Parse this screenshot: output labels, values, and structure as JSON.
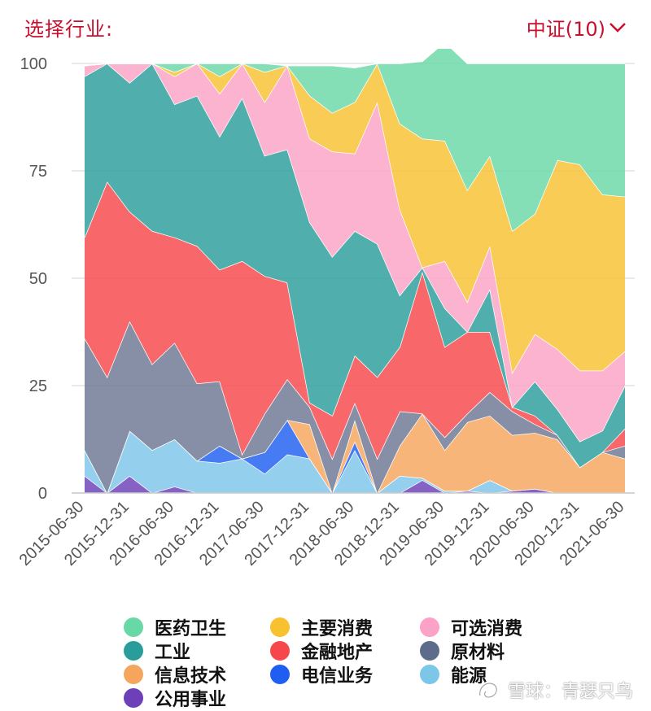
{
  "header": {
    "title": "选择行业:",
    "index_selector": "中证(10)"
  },
  "watermark": {
    "text": "雪球：青瑟只鸟"
  },
  "chart_data": {
    "type": "area",
    "stacked": true,
    "ylim": [
      0,
      100
    ],
    "yticks": [
      0,
      25,
      50,
      75,
      100
    ],
    "x": [
      "2015-06-30",
      "2015-09-30",
      "2015-12-31",
      "2016-03-31",
      "2016-06-30",
      "2016-09-30",
      "2016-12-31",
      "2017-03-31",
      "2017-06-30",
      "2017-09-30",
      "2017-12-31",
      "2018-03-31",
      "2018-06-30",
      "2018-09-30",
      "2018-12-31",
      "2019-03-31",
      "2019-06-30",
      "2019-09-30",
      "2019-12-31",
      "2020-03-31",
      "2020-06-30",
      "2020-09-30",
      "2020-12-31",
      "2021-03-31",
      "2021-06-30"
    ],
    "xtick_labels": [
      "2015-06-30",
      "2015-12-31",
      "2016-06-30",
      "2016-12-31",
      "2017-06-30",
      "2017-12-31",
      "2018-06-30",
      "2018-12-31",
      "2019-06-30",
      "2019-12-31",
      "2020-06-30",
      "2020-12-31",
      "2021-06-30"
    ],
    "series": [
      {
        "name": "公用事业",
        "color": "#6d3fb8",
        "values": [
          4,
          0,
          4,
          0,
          1.5,
          0,
          0,
          0,
          0,
          0,
          0,
          0,
          0,
          0,
          0,
          3,
          0,
          0.5,
          0,
          0.5,
          1,
          0,
          0,
          0,
          0
        ]
      },
      {
        "name": "能源",
        "color": "#7cc6ea",
        "values": [
          6,
          0,
          10.5,
          10,
          11,
          7.5,
          7,
          8,
          4.5,
          9,
          8,
          0,
          10,
          0,
          4,
          0.5,
          0.5,
          0,
          3,
          0,
          0,
          0,
          0,
          0,
          0
        ]
      },
      {
        "name": "电信业务",
        "color": "#1f5ef0",
        "values": [
          0,
          0,
          0,
          0,
          0,
          0,
          4,
          0,
          5,
          8,
          0,
          0,
          2,
          0,
          0,
          0,
          0,
          0,
          0,
          0,
          0,
          0,
          0,
          0,
          0
        ]
      },
      {
        "name": "信息技术",
        "color": "#f6a55c",
        "values": [
          0,
          0,
          0,
          0,
          0,
          0,
          0,
          0,
          0,
          0,
          8,
          0,
          5,
          0,
          7,
          15,
          9.5,
          16,
          15,
          13,
          13,
          12.5,
          6,
          9.5,
          8
        ]
      },
      {
        "name": "原材料",
        "color": "#6b7692",
        "values": [
          26,
          27,
          25.5,
          20,
          22.5,
          18,
          15,
          1,
          9,
          9.5,
          4,
          8,
          4,
          8,
          8,
          0,
          3,
          2,
          5.5,
          5.5,
          2,
          1,
          0,
          0,
          3
        ]
      },
      {
        "name": "金融地产",
        "color": "#f6474b",
        "values": [
          23.5,
          45.5,
          25.5,
          31,
          24.5,
          32,
          26,
          45,
          32,
          22.5,
          1,
          10,
          11,
          19,
          15,
          33,
          21,
          19,
          14,
          1,
          2,
          0,
          0,
          0,
          4
        ]
      },
      {
        "name": "工业",
        "color": "#2a9d9a",
        "values": [
          37.5,
          27.5,
          30,
          39,
          31,
          35,
          31,
          38,
          28,
          31,
          42,
          37,
          29,
          31,
          12,
          1,
          9,
          0,
          10,
          0,
          8,
          6,
          6,
          5,
          10
        ]
      },
      {
        "name": "可选消费",
        "color": "#fba2c6",
        "values": [
          2.5,
          0,
          4.5,
          0,
          6.5,
          7.5,
          10,
          8,
          12.5,
          19.5,
          19.5,
          24.5,
          18,
          33,
          20,
          0,
          11,
          7,
          10,
          8,
          11,
          14,
          16.5,
          14,
          8
        ]
      },
      {
        "name": "主要消费",
        "color": "#f7c12f",
        "values": [
          0,
          0,
          0,
          0,
          1,
          0,
          4,
          0,
          7,
          0,
          10,
          9,
          12,
          9,
          20,
          30,
          28,
          26,
          21,
          33,
          28,
          44,
          48,
          41,
          36
        ]
      },
      {
        "name": "医药卫生",
        "color": "#69d8a7",
        "values": [
          0,
          0,
          0,
          0,
          2,
          0,
          3,
          0,
          2,
          0,
          7,
          11,
          8,
          0,
          14,
          18,
          23,
          29.5,
          21.5,
          39,
          35,
          22.5,
          23.5,
          30.5,
          31
        ]
      }
    ]
  },
  "legend": [
    {
      "label": "医药卫生",
      "color": "#69d8a7"
    },
    {
      "label": "主要消费",
      "color": "#f7c12f"
    },
    {
      "label": "可选消费",
      "color": "#fba2c6"
    },
    {
      "label": "工业",
      "color": "#2a9d9a"
    },
    {
      "label": "金融地产",
      "color": "#f6474b"
    },
    {
      "label": "原材料",
      "color": "#5d6b8c"
    },
    {
      "label": "信息技术",
      "color": "#f6a55c"
    },
    {
      "label": "电信业务",
      "color": "#1f5ef0"
    },
    {
      "label": "能源",
      "color": "#7cc6ea"
    },
    {
      "label": "公用事业",
      "color": "#6d3fb8"
    }
  ]
}
